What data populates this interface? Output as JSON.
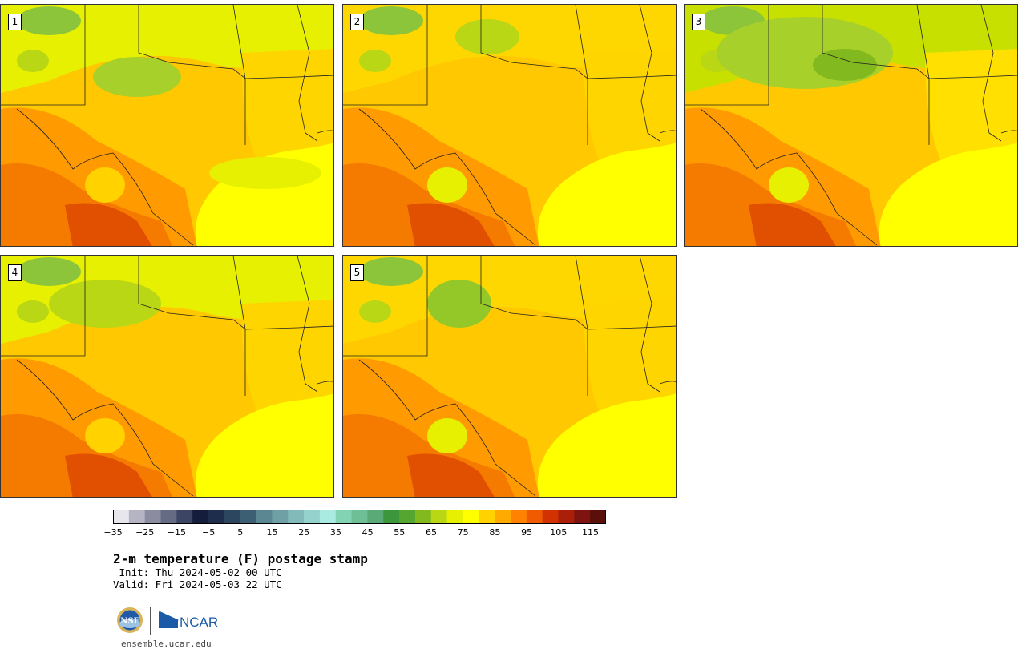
{
  "panels": [
    {
      "label": "1"
    },
    {
      "label": "2"
    },
    {
      "label": "3"
    },
    {
      "label": "4"
    },
    {
      "label": "5"
    }
  ],
  "colorbar": {
    "colors": [
      "#e6e6ec",
      "#b4b4c3",
      "#8c8ca0",
      "#646b82",
      "#3c4664",
      "#141e3c",
      "#1e2d4b",
      "#2d465f",
      "#3c5f73",
      "#5a8791",
      "#6ea0a5",
      "#82b9b9",
      "#96d2cd",
      "#aaebe1",
      "#82d2b4",
      "#6ebe96",
      "#5aaa78",
      "#3c963c",
      "#55a532",
      "#82b91e",
      "#b9d714",
      "#e6f000",
      "#ffff00",
      "#ffd200",
      "#ffaa00",
      "#ff8200",
      "#f05a00",
      "#d23200",
      "#aa1e0a",
      "#7d140f",
      "#5a0f0a"
    ],
    "ticks": [
      "−35",
      "−25",
      "−15",
      "−5",
      "5",
      "15",
      "25",
      "35",
      "45",
      "55",
      "65",
      "75",
      "85",
      "95",
      "105",
      "115"
    ]
  },
  "title": "2-m temperature (F) postage stamp",
  "init": " Init: Thu 2024-05-02 00 UTC",
  "valid": "Valid: Fri 2024-05-03 22 UTC",
  "logos": {
    "nsf": "NSF",
    "ncar": "NCAR"
  },
  "site": "ensemble.ucar.edu"
}
